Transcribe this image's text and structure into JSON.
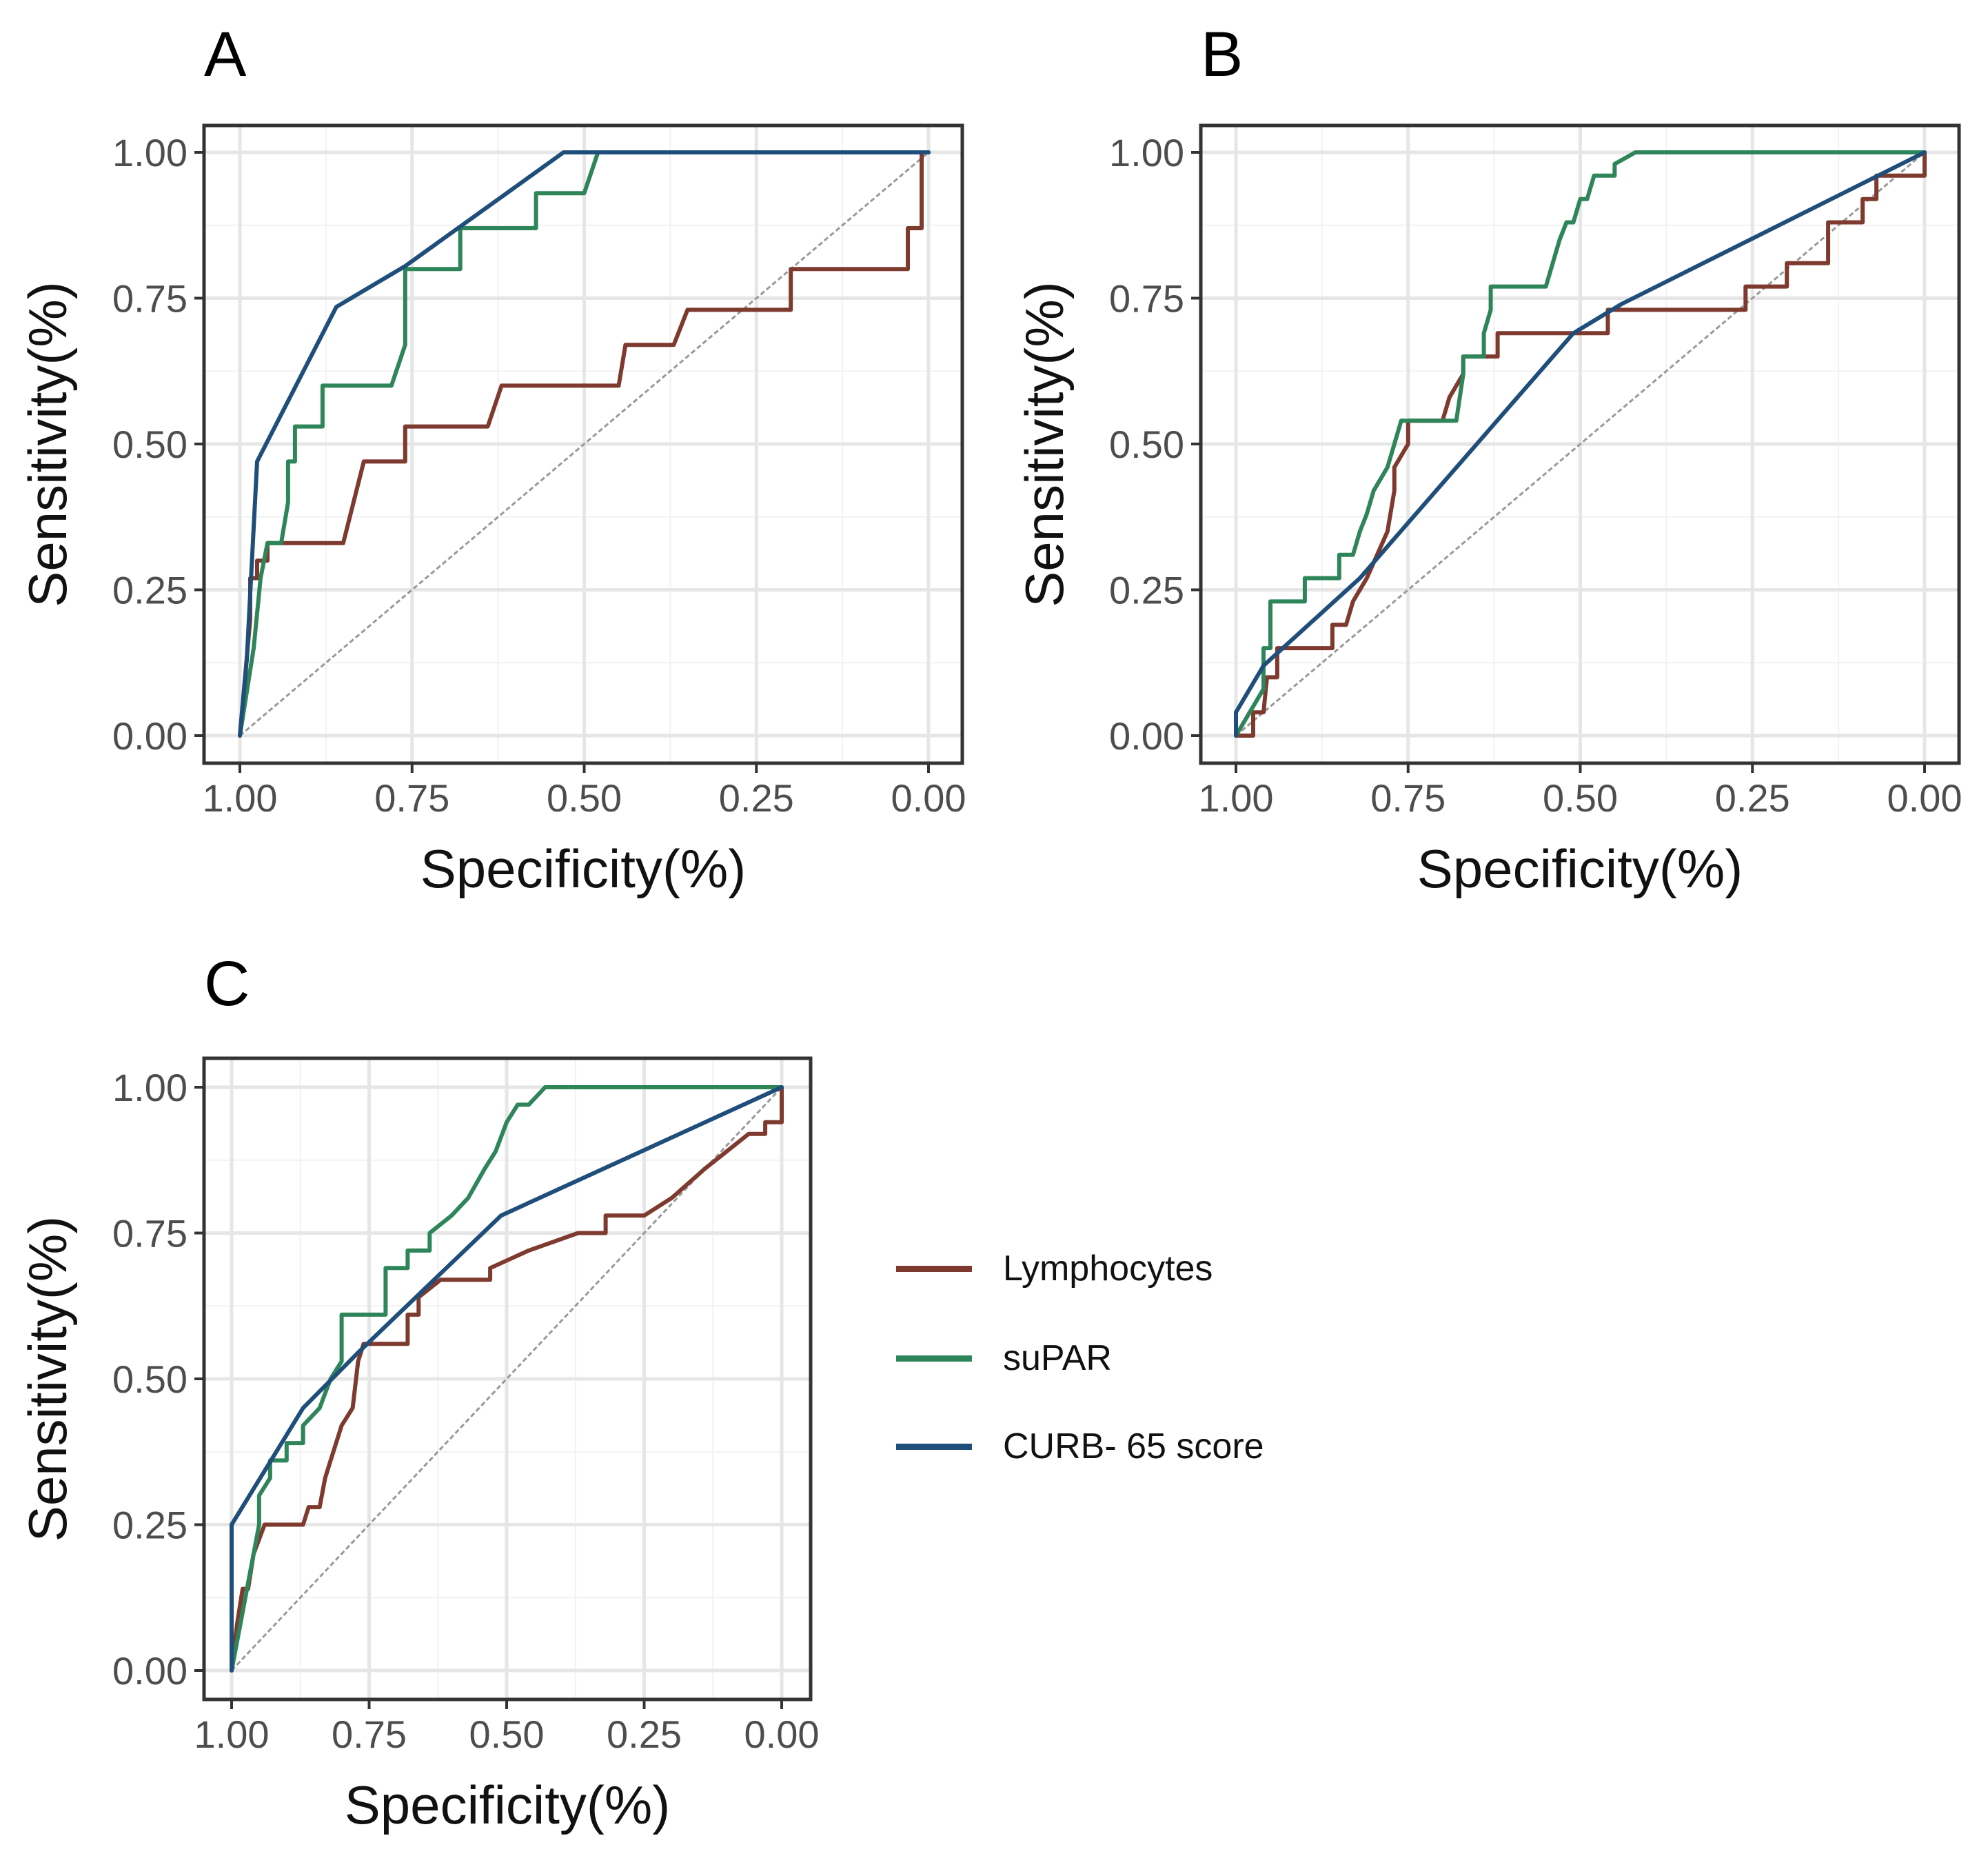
{
  "figure": {
    "legend_title": "",
    "legend": [
      {
        "label": "Lymphocytes",
        "color": "#7e3a2e"
      },
      {
        "label": "suPAR",
        "color": "#2f855a"
      },
      {
        "label": "CURB- 65 score",
        "color": "#1f4e7a"
      }
    ]
  },
  "chart_data": [
    {
      "type": "line",
      "panel_label": "A",
      "title": "",
      "xlabel": "Specificity(%)",
      "ylabel": "Sensitivity(%)",
      "xlim": [
        1.0,
        0.0
      ],
      "ylim": [
        0.0,
        1.0
      ],
      "x_reversed": true,
      "x_ticks": [
        "1.00",
        "0.75",
        "0.50",
        "0.25",
        "0.00"
      ],
      "y_ticks": [
        "0.00",
        "0.25",
        "0.50",
        "0.75",
        "1.00"
      ],
      "grid": true,
      "reference_line": {
        "x": [
          1.0,
          0.0
        ],
        "y": [
          0.0,
          1.0
        ],
        "style": "dashed",
        "color": "#999999"
      },
      "series": [
        {
          "name": "Lymphocytes",
          "color": "#7e3a2e",
          "x": [
            1.0,
            0.985,
            0.985,
            0.975,
            0.975,
            0.96,
            0.96,
            0.85,
            0.82,
            0.82,
            0.76,
            0.76,
            0.64,
            0.62,
            0.62,
            0.45,
            0.44,
            0.44,
            0.37,
            0.35,
            0.35,
            0.2,
            0.2,
            0.03,
            0.03,
            0.01,
            0.01,
            0.0
          ],
          "y": [
            0.0,
            0.2,
            0.27,
            0.27,
            0.3,
            0.3,
            0.33,
            0.33,
            0.47,
            0.47,
            0.47,
            0.53,
            0.53,
            0.6,
            0.6,
            0.6,
            0.67,
            0.67,
            0.67,
            0.73,
            0.73,
            0.73,
            0.8,
            0.8,
            0.87,
            0.87,
            1.0,
            1.0
          ]
        },
        {
          "name": "suPAR",
          "color": "#2f855a",
          "x": [
            1.0,
            0.98,
            0.97,
            0.96,
            0.96,
            0.94,
            0.93,
            0.93,
            0.92,
            0.92,
            0.88,
            0.88,
            0.78,
            0.76,
            0.76,
            0.68,
            0.68,
            0.57,
            0.57,
            0.5,
            0.48,
            0.48,
            0.0
          ],
          "y": [
            0.0,
            0.15,
            0.27,
            0.33,
            0.33,
            0.33,
            0.4,
            0.47,
            0.47,
            0.53,
            0.53,
            0.6,
            0.6,
            0.67,
            0.8,
            0.8,
            0.87,
            0.87,
            0.93,
            0.93,
            1.0,
            1.0,
            1.0
          ]
        },
        {
          "name": "CURB- 65 score",
          "color": "#1f4e7a",
          "x": [
            1.0,
            0.99,
            0.99,
            0.975,
            0.86,
            0.76,
            0.53,
            0.0
          ],
          "y": [
            0.0,
            0.13,
            0.13,
            0.47,
            0.735,
            0.805,
            1.0,
            1.0
          ]
        }
      ]
    },
    {
      "type": "line",
      "panel_label": "B",
      "title": "",
      "xlabel": "Specificity(%)",
      "ylabel": "Sensitivity(%)",
      "xlim": [
        1.0,
        0.0
      ],
      "ylim": [
        0.0,
        1.0
      ],
      "x_reversed": true,
      "x_ticks": [
        "1.00",
        "0.75",
        "0.50",
        "0.25",
        "0.00"
      ],
      "y_ticks": [
        "0.00",
        "0.25",
        "0.50",
        "0.75",
        "1.00"
      ],
      "grid": true,
      "reference_line": {
        "x": [
          1.0,
          0.0
        ],
        "y": [
          0.0,
          1.0
        ],
        "style": "dashed",
        "color": "#999999"
      },
      "series": [
        {
          "name": "Lymphocytes",
          "color": "#7e3a2e",
          "x": [
            1.0,
            0.99,
            0.975,
            0.975,
            0.96,
            0.955,
            0.94,
            0.94,
            0.86,
            0.86,
            0.84,
            0.83,
            0.81,
            0.78,
            0.77,
            0.77,
            0.75,
            0.75,
            0.7,
            0.69,
            0.67,
            0.67,
            0.62,
            0.62,
            0.46,
            0.46,
            0.26,
            0.26,
            0.2,
            0.2,
            0.14,
            0.14,
            0.09,
            0.09,
            0.07,
            0.07,
            0.05,
            0.05,
            0.02,
            0.02,
            0.0,
            0.0
          ],
          "y": [
            0.0,
            0.0,
            0.0,
            0.04,
            0.04,
            0.1,
            0.1,
            0.15,
            0.15,
            0.19,
            0.19,
            0.23,
            0.27,
            0.35,
            0.42,
            0.46,
            0.5,
            0.54,
            0.54,
            0.58,
            0.62,
            0.65,
            0.65,
            0.69,
            0.69,
            0.73,
            0.73,
            0.77,
            0.77,
            0.81,
            0.81,
            0.88,
            0.88,
            0.92,
            0.92,
            0.96,
            0.96,
            0.96,
            0.96,
            0.96,
            0.96,
            1.0
          ]
        },
        {
          "name": "suPAR",
          "color": "#2f855a",
          "x": [
            1.0,
            0.98,
            0.96,
            0.96,
            0.95,
            0.95,
            0.9,
            0.9,
            0.85,
            0.85,
            0.83,
            0.82,
            0.81,
            0.8,
            0.78,
            0.77,
            0.76,
            0.76,
            0.68,
            0.67,
            0.67,
            0.66,
            0.64,
            0.64,
            0.63,
            0.63,
            0.55,
            0.53,
            0.52,
            0.51,
            0.5,
            0.49,
            0.48,
            0.47,
            0.45,
            0.45,
            0.42,
            0.41,
            0.0
          ],
          "y": [
            0.0,
            0.04,
            0.08,
            0.15,
            0.15,
            0.23,
            0.23,
            0.27,
            0.27,
            0.31,
            0.31,
            0.35,
            0.38,
            0.42,
            0.46,
            0.5,
            0.54,
            0.54,
            0.54,
            0.62,
            0.65,
            0.65,
            0.65,
            0.69,
            0.73,
            0.77,
            0.77,
            0.85,
            0.88,
            0.88,
            0.92,
            0.92,
            0.96,
            0.96,
            0.96,
            0.98,
            1.0,
            1.0,
            1.0
          ]
        },
        {
          "name": "CURB- 65 score",
          "color": "#1f4e7a",
          "x": [
            1.0,
            1.0,
            0.96,
            0.82,
            0.51,
            0.44,
            0.0
          ],
          "y": [
            0.0,
            0.04,
            0.12,
            0.27,
            0.69,
            0.74,
            1.0
          ]
        }
      ]
    },
    {
      "type": "line",
      "panel_label": "C",
      "title": "",
      "xlabel": "Specificity(%)",
      "ylabel": "Sensitivity(%)",
      "xlim": [
        1.0,
        0.0
      ],
      "ylim": [
        0.0,
        1.0
      ],
      "x_reversed": true,
      "x_ticks": [
        "1.00",
        "0.75",
        "0.50",
        "0.25",
        "0.00"
      ],
      "y_ticks": [
        "0.00",
        "0.25",
        "0.50",
        "0.75",
        "1.00"
      ],
      "grid": true,
      "reference_line": {
        "x": [
          1.0,
          0.0
        ],
        "y": [
          0.0,
          1.0
        ],
        "style": "dashed",
        "color": "#999999"
      },
      "series": [
        {
          "name": "Lymphocytes",
          "color": "#7e3a2e",
          "x": [
            1.0,
            0.99,
            0.98,
            0.97,
            0.96,
            0.94,
            0.87,
            0.86,
            0.86,
            0.84,
            0.83,
            0.82,
            0.81,
            0.8,
            0.78,
            0.77,
            0.77,
            0.76,
            0.68,
            0.68,
            0.66,
            0.66,
            0.62,
            0.62,
            0.53,
            0.53,
            0.46,
            0.46,
            0.37,
            0.37,
            0.32,
            0.32,
            0.25,
            0.25,
            0.2,
            0.2,
            0.14,
            0.14,
            0.1,
            0.1,
            0.06,
            0.06,
            0.03,
            0.03,
            0.0,
            0.0
          ],
          "y": [
            0.0,
            0.08,
            0.14,
            0.14,
            0.2,
            0.25,
            0.25,
            0.28,
            0.28,
            0.28,
            0.33,
            0.36,
            0.39,
            0.42,
            0.45,
            0.53,
            0.53,
            0.56,
            0.56,
            0.61,
            0.61,
            0.64,
            0.67,
            0.67,
            0.67,
            0.69,
            0.72,
            0.72,
            0.75,
            0.75,
            0.75,
            0.78,
            0.78,
            0.78,
            0.81,
            0.81,
            0.86,
            0.86,
            0.89,
            0.89,
            0.92,
            0.92,
            0.92,
            0.94,
            0.94,
            1.0
          ]
        },
        {
          "name": "suPAR",
          "color": "#2f855a",
          "x": [
            1.0,
            0.98,
            0.97,
            0.96,
            0.95,
            0.95,
            0.93,
            0.93,
            0.9,
            0.9,
            0.87,
            0.87,
            0.84,
            0.82,
            0.8,
            0.8,
            0.72,
            0.72,
            0.68,
            0.68,
            0.64,
            0.64,
            0.6,
            0.6,
            0.57,
            0.54,
            0.52,
            0.5,
            0.48,
            0.46,
            0.43,
            0.42,
            0.0
          ],
          "y": [
            0.0,
            0.1,
            0.15,
            0.2,
            0.25,
            0.3,
            0.33,
            0.36,
            0.36,
            0.39,
            0.39,
            0.42,
            0.45,
            0.5,
            0.53,
            0.61,
            0.61,
            0.69,
            0.69,
            0.72,
            0.72,
            0.75,
            0.78,
            0.78,
            0.81,
            0.86,
            0.89,
            0.94,
            0.97,
            0.97,
            1.0,
            1.0,
            1.0
          ]
        },
        {
          "name": "CURB- 65 score",
          "color": "#1f4e7a",
          "x": [
            1.0,
            1.0,
            0.87,
            0.77,
            0.51,
            0.0
          ],
          "y": [
            0.0,
            0.25,
            0.45,
            0.545,
            0.78,
            1.0
          ]
        }
      ]
    }
  ]
}
